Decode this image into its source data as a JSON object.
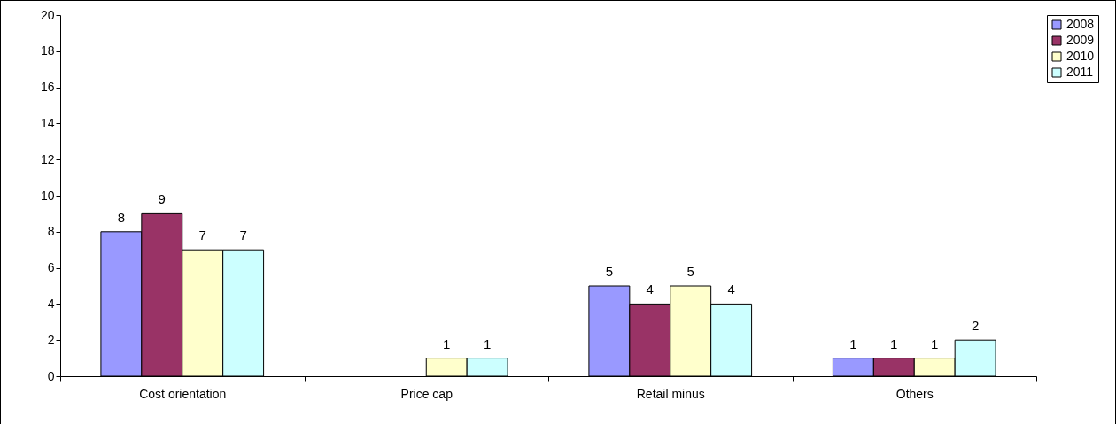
{
  "chart_data": {
    "type": "bar",
    "categories": [
      "Cost orientation",
      "Price cap",
      "Retail minus",
      "Others"
    ],
    "series": [
      {
        "name": "2008",
        "color": "#9999ff",
        "values": [
          8,
          null,
          5,
          1
        ]
      },
      {
        "name": "2009",
        "color": "#993366",
        "values": [
          9,
          null,
          4,
          1
        ]
      },
      {
        "name": "2010",
        "color": "#ffffcc",
        "values": [
          7,
          1,
          5,
          1
        ]
      },
      {
        "name": "2011",
        "color": "#ccffff",
        "values": [
          7,
          1,
          4,
          2
        ]
      }
    ],
    "ylim": [
      0,
      20
    ],
    "yticks": [
      0,
      2,
      4,
      6,
      8,
      10,
      12,
      14,
      16,
      18,
      20
    ],
    "grid": false,
    "legend": "right",
    "data_labels": true
  }
}
